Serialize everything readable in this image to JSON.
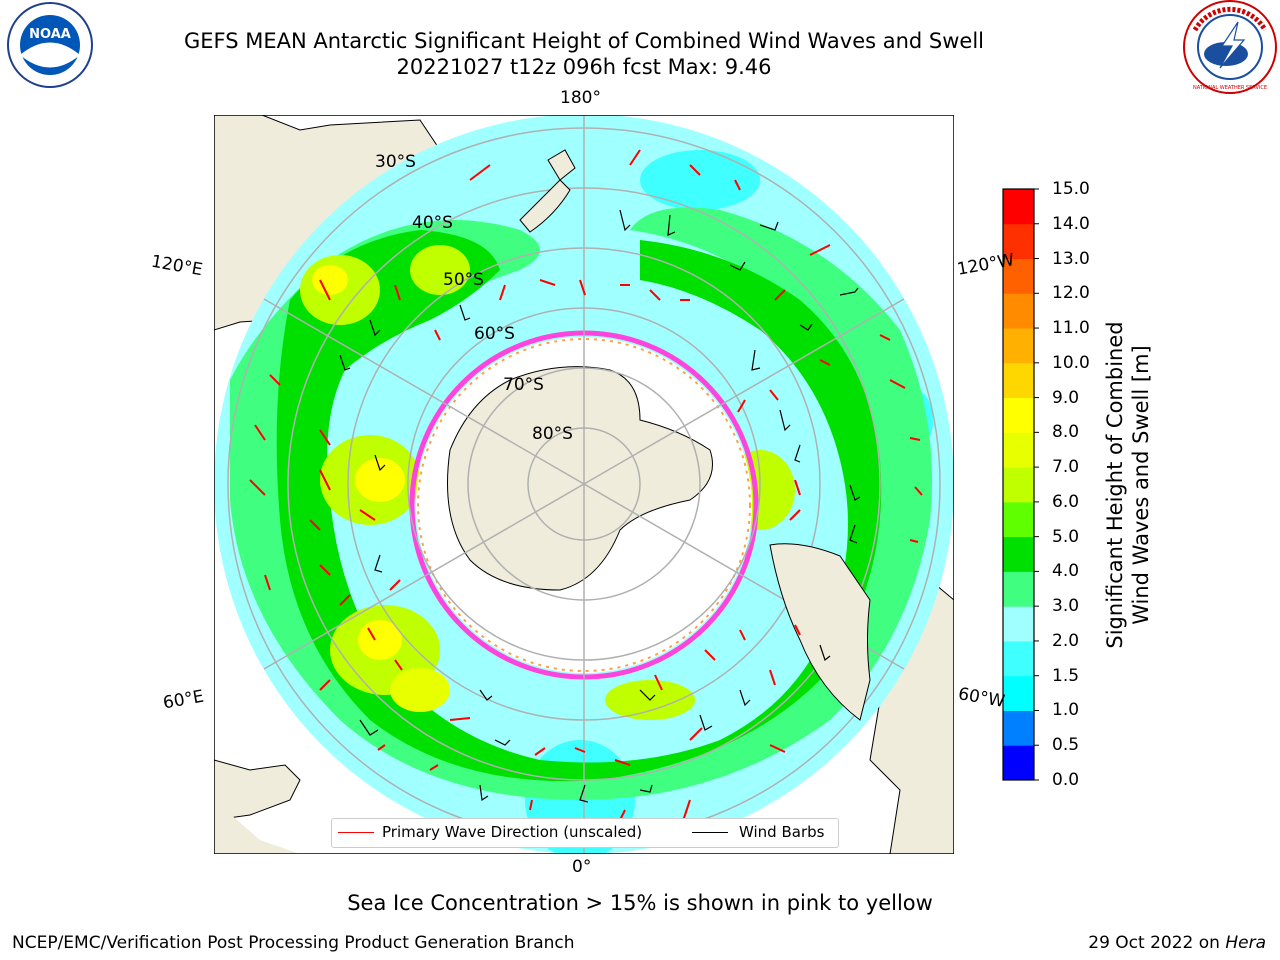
{
  "title": {
    "line1": "GEFS MEAN Antarctic Significant Height of Combined Wind Waves and Swell",
    "line2": "20221027 t12z 096h fcst   Max: 9.46"
  },
  "logos": {
    "left": "NOAA",
    "right": "NATIONAL WEATHER SERVICE"
  },
  "map": {
    "projection": "south-polar-stereographic",
    "lon_labels": {
      "top": "180°",
      "bottom": "0°",
      "left_upper": "120°E",
      "left_lower": "60°E",
      "right_upper": "120°W",
      "right_lower": "60°W"
    },
    "lat_labels": [
      "30°S",
      "40°S",
      "50°S",
      "60°S",
      "70°S",
      "80°S"
    ],
    "colors": {
      "land": "#efecdc",
      "ice_free_sea_ice": "#ffffff",
      "ice_edge": "#ff44dd"
    }
  },
  "colorbar": {
    "label_line1": "Significant Height of Combined",
    "label_line2": "Wind Waves and Swell [m]",
    "ticks": [
      "0.0",
      "0.5",
      "1.0",
      "1.5",
      "2.0",
      "3.0",
      "4.0",
      "5.0",
      "6.0",
      "7.0",
      "8.0",
      "9.0",
      "10.0",
      "11.0",
      "12.0",
      "13.0",
      "14.0",
      "15.0"
    ],
    "colors": [
      "#0000ff",
      "#0080ff",
      "#00ffff",
      "#40ffff",
      "#a0ffff",
      "#40ff80",
      "#00e000",
      "#60ff00",
      "#c0ff00",
      "#e8ff00",
      "#ffff00",
      "#ffd700",
      "#ffb000",
      "#ff8c00",
      "#ff6000",
      "#ff3000",
      "#ff0000"
    ]
  },
  "legend": {
    "wave_label": "Primary Wave Direction (unscaled)",
    "wave_color": "#ff0000",
    "barb_label": "Wind Barbs",
    "barb_color": "#000000"
  },
  "note": "Sea Ice Concentration > 15% is shown in pink to yellow",
  "footer": {
    "left": "NCEP/EMC/Verification Post Processing Product Generation Branch",
    "right_date": "29 Oct 2022 on ",
    "right_machine": "Hera"
  }
}
